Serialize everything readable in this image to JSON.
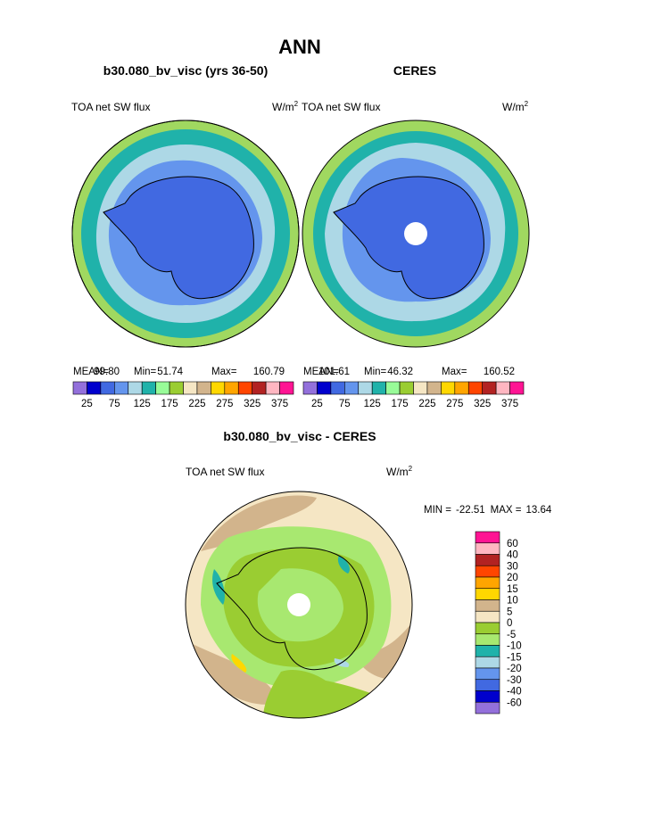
{
  "title": "ANN",
  "panels": [
    {
      "case": "b30.080_bv_visc (yrs 36-50)",
      "variable": "TOA net SW flux",
      "units": "W/m",
      "units_power": "2",
      "stats": [
        {
          "label": "MEAN=",
          "value": "99.80"
        },
        {
          "label": "Min=",
          "value": "51.74"
        },
        {
          "label": "Max=",
          "value": "160.79"
        }
      ]
    },
    {
      "case": "CERES",
      "variable": "TOA net SW flux",
      "units": "W/m",
      "units_power": "2",
      "stats": [
        {
          "label": "MEAN=",
          "value": "101.61"
        },
        {
          "label": "Min=",
          "value": "46.32"
        },
        {
          "label": "Max=",
          "value": "160.52"
        }
      ]
    }
  ],
  "colorbar": {
    "colors": [
      "#9370db",
      "#0000cd",
      "#4169e1",
      "#6495ed",
      "#add8e6",
      "#20b2aa",
      "#98fb98",
      "#9acd32",
      "#f5e6c4",
      "#d2b48c",
      "#ffd700",
      "#ffa500",
      "#ff4500",
      "#b22222",
      "#ffb6c1",
      "#ff1493"
    ],
    "labels": [
      25,
      75,
      125,
      175,
      225,
      275,
      325,
      375
    ]
  },
  "difference": {
    "title": "b30.080_bv_visc - CERES",
    "variable": "TOA net SW flux",
    "units": "W/m",
    "units_power": "2",
    "stats": [
      {
        "label": "MIN =",
        "value": "-22.51"
      },
      {
        "label": "MAX =",
        "value": "13.64"
      }
    ],
    "colorbar": {
      "colors": [
        "#ff1493",
        "#ffb6c1",
        "#b22222",
        "#ff4500",
        "#ffa500",
        "#ffd700",
        "#d2b48c",
        "#f5e6c4",
        "#9acd32",
        "#a8e870",
        "#20b2aa",
        "#add8e6",
        "#6495ed",
        "#4169e1",
        "#0000cd",
        "#9370db"
      ],
      "labels": [
        60,
        40,
        30,
        20,
        15,
        10,
        5,
        0,
        -5,
        -10,
        -15,
        -20,
        -30,
        -40,
        -60
      ]
    }
  }
}
